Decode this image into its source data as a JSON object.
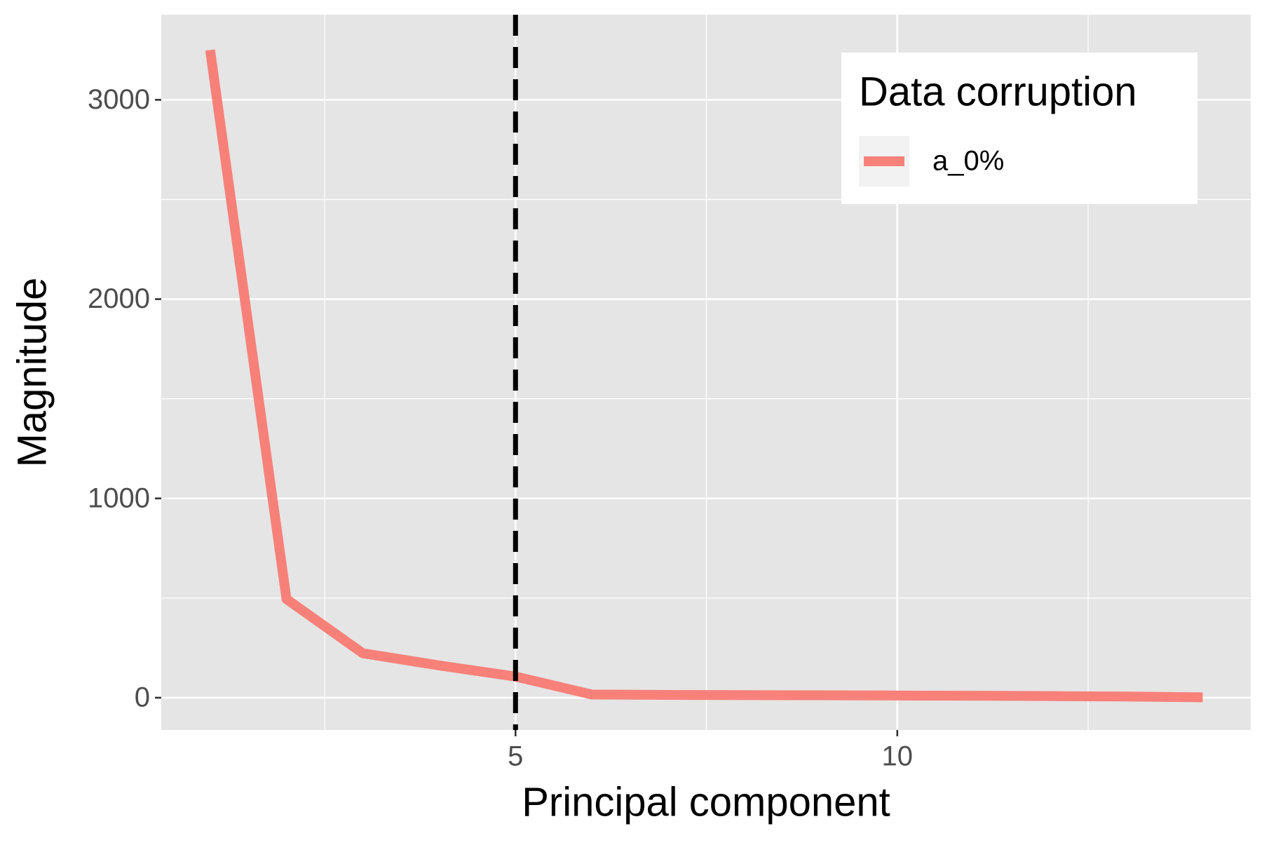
{
  "chart_data": {
    "type": "line",
    "x_label": "Principal component",
    "y_label": "Magnitude",
    "x": [
      1,
      2,
      3,
      4,
      5,
      6,
      7,
      8,
      9,
      10,
      11,
      12,
      13,
      14
    ],
    "series": [
      {
        "name": "a_0%",
        "color": "#F8766D",
        "values": [
          3250,
          495,
          223,
          162,
          106,
          16,
          14,
          13,
          12,
          11,
          10,
          8,
          6,
          2
        ]
      }
    ],
    "legend_title": "Data corruption",
    "legend_position": "top-right",
    "xlim": [
      0.36,
      14.63
    ],
    "ylim": [
      -162,
      3427
    ],
    "xticks": [
      5,
      10
    ],
    "yticks": [
      0,
      1000,
      2000,
      3000
    ],
    "grid": true,
    "vline": 5
  }
}
